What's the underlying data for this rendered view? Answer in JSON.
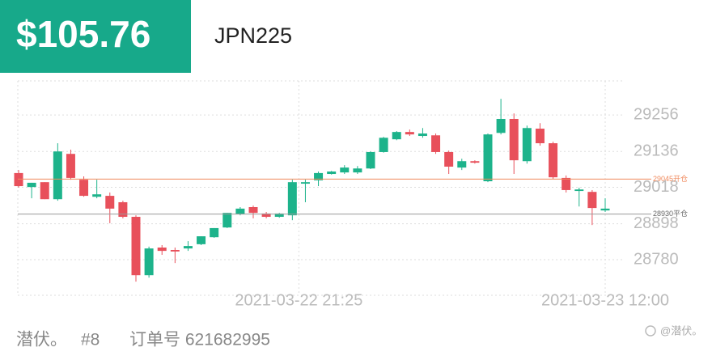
{
  "header": {
    "price": "$105.76",
    "symbol": "JPN225"
  },
  "chart_data": {
    "type": "candlestick",
    "open": [
      29065,
      29019,
      29035,
      28979,
      29128,
      29043,
      28987,
      28990,
      28969,
      28921,
      28729,
      28820,
      28812,
      28817,
      28831,
      28854,
      28886,
      28929,
      28953,
      28932,
      28921,
      28926,
      29030,
      29041,
      29062,
      29067,
      29067,
      29080,
      29134,
      29176,
      29200,
      29187,
      29189,
      29134,
      29083,
      29104,
      29038,
      29197,
      29243,
      29104,
      29211,
      29163,
      29049,
      29006,
      29003,
      28942
    ],
    "high": [
      29075,
      29033,
      29035,
      29163,
      29142,
      29054,
      29043,
      29001,
      28974,
      28926,
      28823,
      28828,
      28820,
      28841,
      28857,
      28884,
      28934,
      28953,
      28958,
      28937,
      28934,
      29043,
      29043,
      29070,
      29072,
      29091,
      29088,
      29136,
      29184,
      29203,
      29208,
      29213,
      29195,
      29139,
      29112,
      29107,
      29195,
      29309,
      29261,
      29221,
      29229,
      29168,
      29057,
      29017,
      29009,
      28982
    ],
    "low": [
      29017,
      28982,
      28979,
      28974,
      29043,
      28987,
      28982,
      28900,
      28916,
      28708,
      28721,
      28796,
      28769,
      28809,
      28828,
      28852,
      28884,
      28926,
      28916,
      28916,
      28918,
      28910,
      28969,
      29022,
      29060,
      29062,
      29062,
      29078,
      29132,
      29173,
      29187,
      29181,
      29128,
      29062,
      29075,
      29096,
      29035,
      29192,
      29062,
      29096,
      29155,
      29046,
      29001,
      28955,
      28894,
      28937
    ],
    "close": [
      29022,
      29033,
      28979,
      29136,
      29049,
      28990,
      28995,
      28948,
      28921,
      28729,
      28817,
      28809,
      28807,
      28825,
      28857,
      28884,
      28934,
      28948,
      28934,
      28921,
      28932,
      29035,
      29035,
      29065,
      29070,
      29083,
      29080,
      29134,
      29181,
      29200,
      29192,
      29195,
      29134,
      29086,
      29104,
      29099,
      29192,
      29243,
      29107,
      29213,
      29163,
      29051,
      29009,
      29011,
      28950,
      28948
    ],
    "up_color": "#1db38b",
    "down_color": "#e8505b",
    "ylim": [
      28663,
      29368
    ],
    "yticks": [
      28780,
      28898,
      29018,
      29136,
      29256
    ],
    "xlim": [
      0,
      45
    ],
    "xticks": [
      {
        "value": 21.5,
        "label": "2021-03-22 21:25"
      },
      {
        "value": 45,
        "label": "2021-03-23 12:00"
      }
    ],
    "reference_lines": [
      {
        "value": 29045,
        "label": "29045开仓",
        "color": "#f08a5d"
      },
      {
        "value": 28930,
        "label": "28930平仓",
        "color": "#9a9a9a"
      }
    ],
    "grid": true
  },
  "footer": {
    "name": "潜伏。",
    "rank": "#8",
    "order": "订单号 621682995",
    "watermark": "@潜伏。"
  }
}
